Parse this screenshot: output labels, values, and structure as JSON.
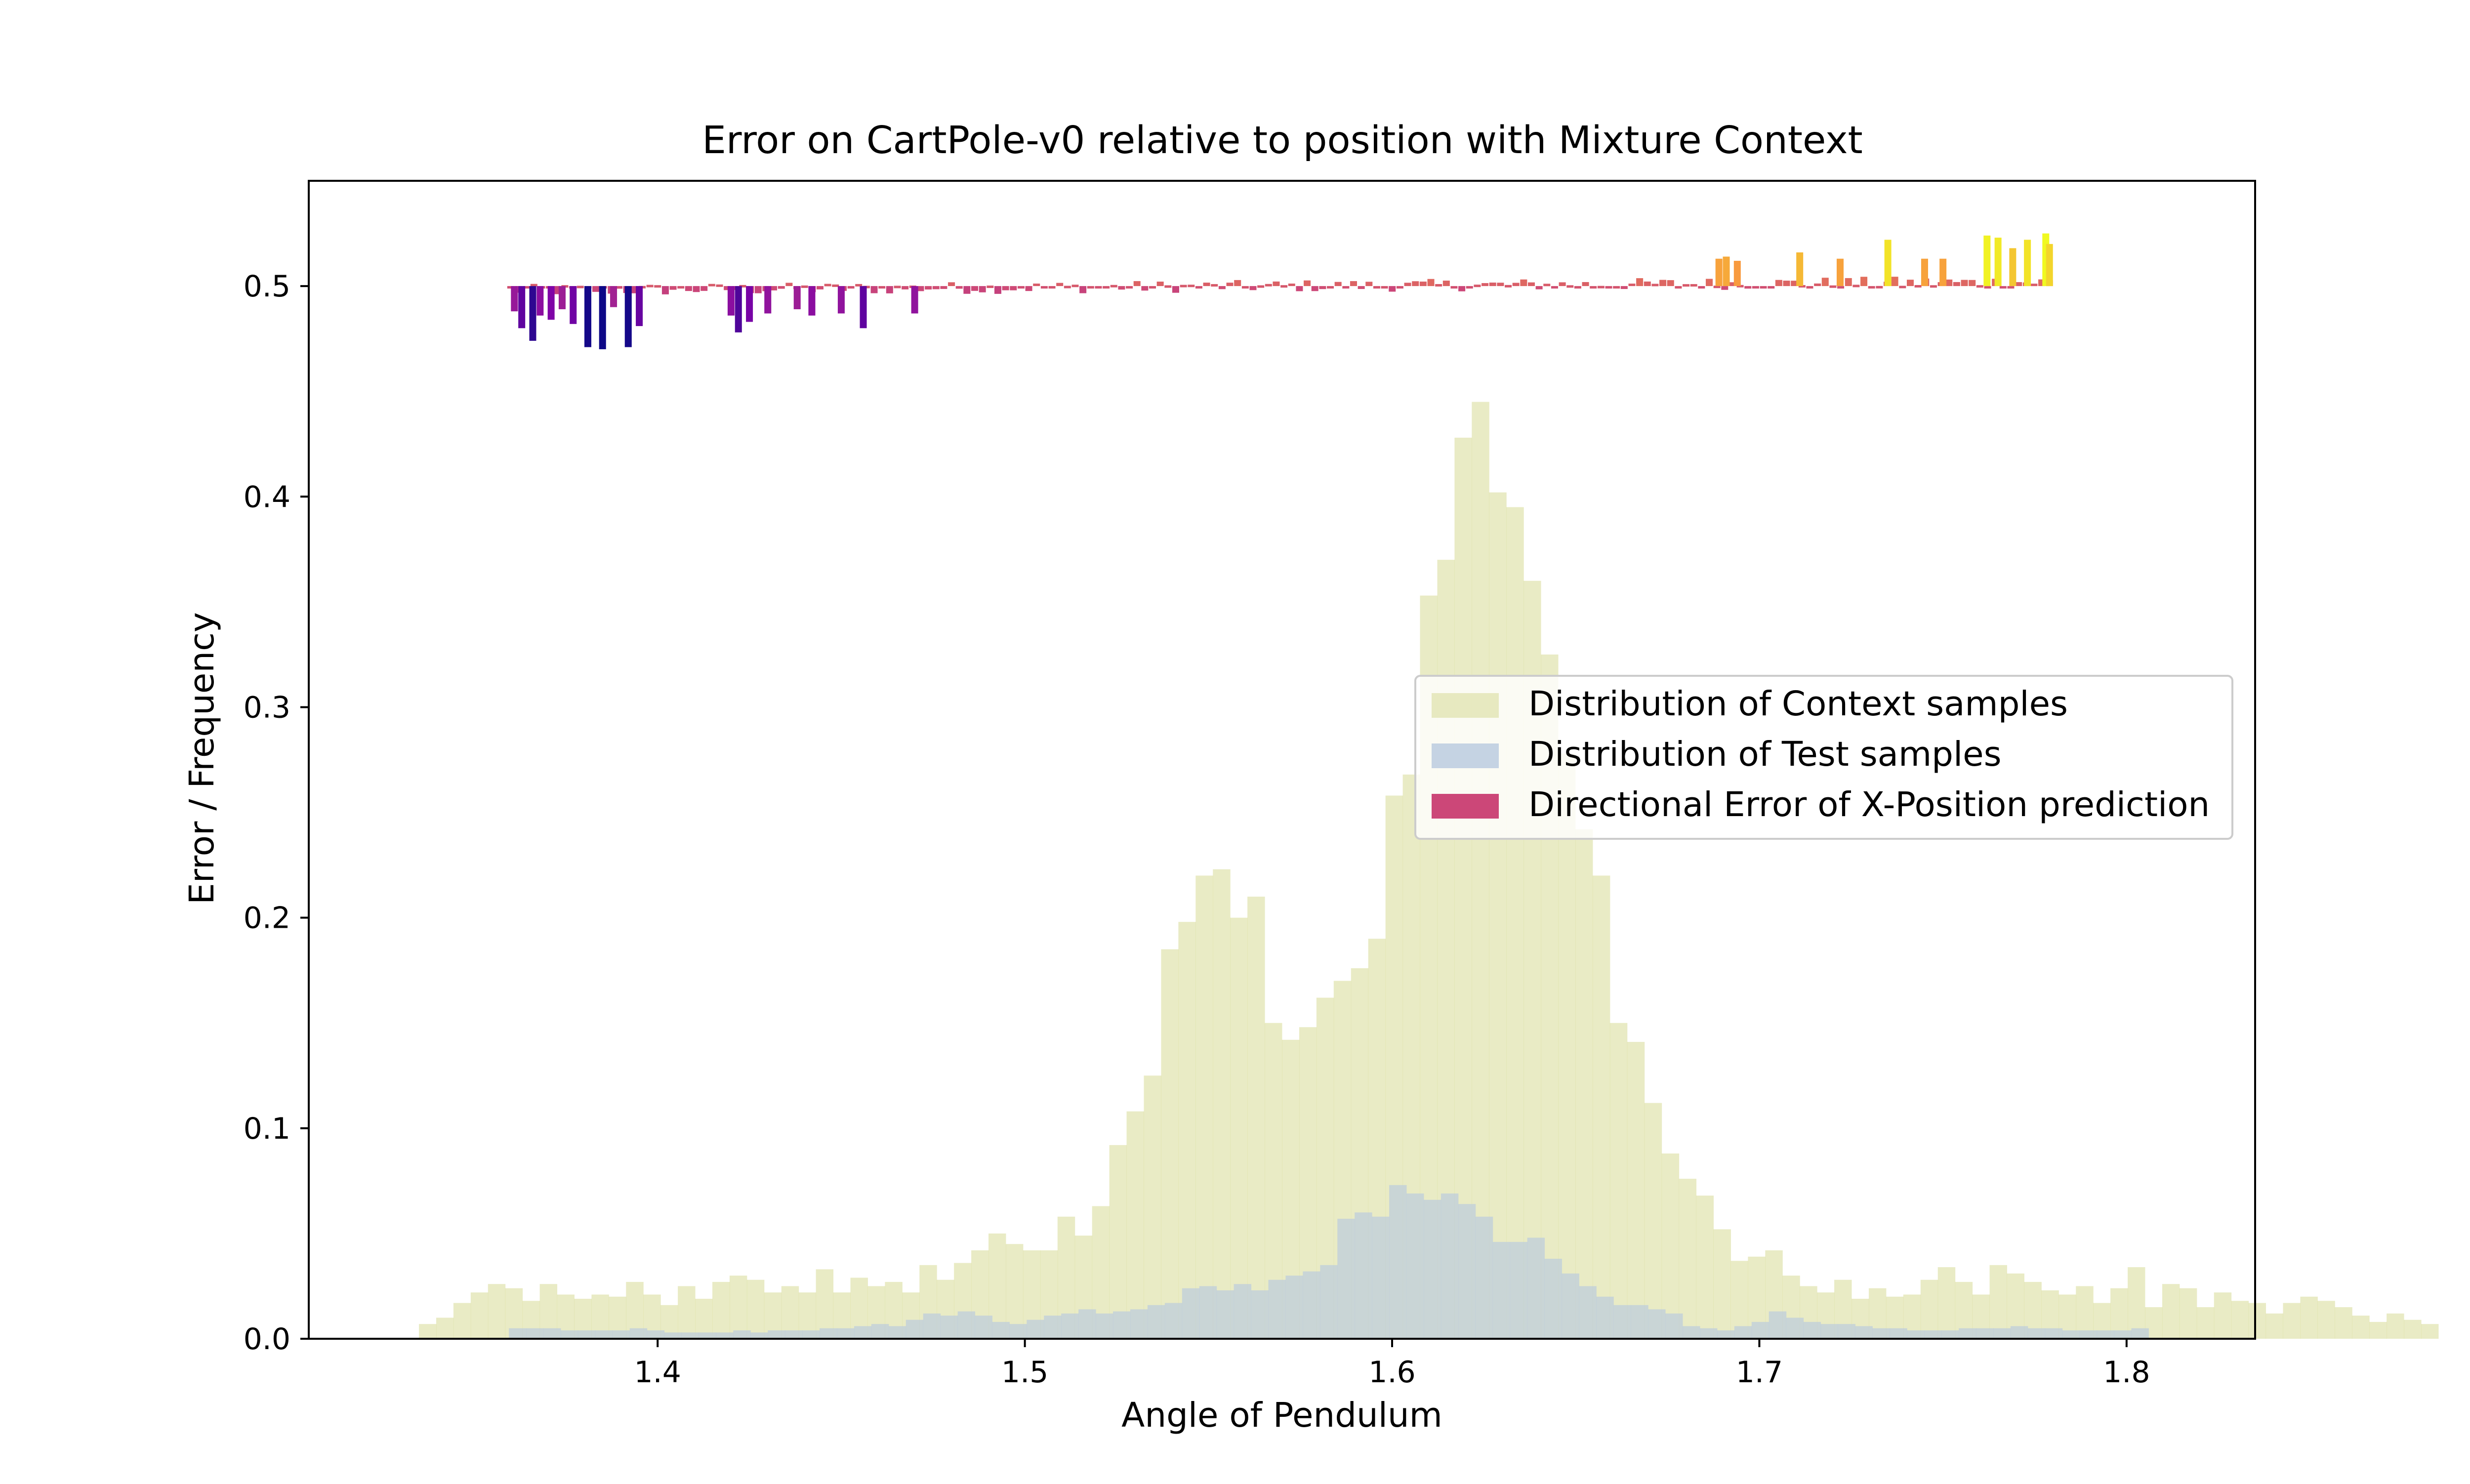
{
  "chart_data": {
    "type": "bar",
    "title": "Error on CartPole-v0 relative to position with Mixture Context",
    "xlabel": "Angle of Pendulum",
    "ylabel": "Error / Frequency",
    "xlim": [
      1.305,
      1.835
    ],
    "ylim": [
      0.0,
      0.55
    ],
    "x_ticks": [
      "1.4",
      "1.5",
      "1.6",
      "1.7",
      "1.8"
    ],
    "y_ticks": [
      "0.0",
      "0.1",
      "0.2",
      "0.3",
      "0.4",
      "0.5"
    ],
    "grid": false,
    "legend_position": "center-right",
    "legend": [
      "Distribution of Context samples",
      "Distribution of Test samples",
      "Directional Error of X-Position prediction"
    ],
    "colors": {
      "context": "#d4d78b",
      "test": "#b8c9de",
      "error_legend": "#cc4778",
      "axis": "#000000"
    },
    "context_histogram": {
      "name": "Distribution of Context samples",
      "bin_start": 1.335,
      "bin_width": 0.0047,
      "values": [
        0.007,
        0.01,
        0.017,
        0.022,
        0.026,
        0.024,
        0.018,
        0.026,
        0.021,
        0.019,
        0.021,
        0.02,
        0.027,
        0.021,
        0.016,
        0.025,
        0.019,
        0.027,
        0.03,
        0.028,
        0.022,
        0.025,
        0.022,
        0.033,
        0.022,
        0.029,
        0.025,
        0.027,
        0.022,
        0.035,
        0.028,
        0.036,
        0.042,
        0.05,
        0.045,
        0.042,
        0.042,
        0.058,
        0.049,
        0.063,
        0.092,
        0.108,
        0.125,
        0.185,
        0.198,
        0.22,
        0.223,
        0.2,
        0.21,
        0.15,
        0.142,
        0.148,
        0.162,
        0.17,
        0.176,
        0.19,
        0.258,
        0.268,
        0.353,
        0.37,
        0.428,
        0.445,
        0.402,
        0.395,
        0.36,
        0.325,
        0.278,
        0.242,
        0.22,
        0.15,
        0.141,
        0.112,
        0.088,
        0.076,
        0.068,
        0.052,
        0.037,
        0.039,
        0.042,
        0.03,
        0.025,
        0.022,
        0.028,
        0.019,
        0.024,
        0.02,
        0.021,
        0.028,
        0.034,
        0.027,
        0.021,
        0.035,
        0.031,
        0.027,
        0.023,
        0.021,
        0.025,
        0.017,
        0.024,
        0.034,
        0.015,
        0.026,
        0.024,
        0.015,
        0.022,
        0.018,
        0.017,
        0.012,
        0.017,
        0.02,
        0.018,
        0.015,
        0.011,
        0.008,
        0.012,
        0.009,
        0.007
      ]
    },
    "test_histogram": {
      "name": "Distribution of Test samples",
      "bin_start": 1.3595,
      "bin_width": 0.0047,
      "values": [
        0.005,
        0.005,
        0.005,
        0.004,
        0.004,
        0.004,
        0.004,
        0.005,
        0.004,
        0.003,
        0.003,
        0.003,
        0.003,
        0.004,
        0.003,
        0.004,
        0.004,
        0.004,
        0.005,
        0.005,
        0.006,
        0.007,
        0.006,
        0.009,
        0.012,
        0.011,
        0.013,
        0.011,
        0.008,
        0.007,
        0.009,
        0.011,
        0.012,
        0.014,
        0.012,
        0.013,
        0.014,
        0.016,
        0.017,
        0.024,
        0.025,
        0.023,
        0.026,
        0.023,
        0.028,
        0.03,
        0.032,
        0.035,
        0.057,
        0.06,
        0.058,
        0.073,
        0.069,
        0.066,
        0.069,
        0.064,
        0.058,
        0.046,
        0.046,
        0.048,
        0.038,
        0.031,
        0.025,
        0.02,
        0.016,
        0.016,
        0.014,
        0.012,
        0.006,
        0.005,
        0.004,
        0.006,
        0.008,
        0.013,
        0.01,
        0.008,
        0.007,
        0.007,
        0.006,
        0.005,
        0.005,
        0.004,
        0.004,
        0.004,
        0.005,
        0.005,
        0.005,
        0.006,
        0.005,
        0.005,
        0.004,
        0.004,
        0.004,
        0.004,
        0.005
      ]
    },
    "error_series": {
      "name": "Directional Error of X-Position prediction",
      "baseline": 0.5,
      "x_start": 1.36,
      "x_end": 1.779,
      "points": 200,
      "highlights": [
        {
          "x": 1.361,
          "y": 0.488
        },
        {
          "x": 1.363,
          "y": 0.48
        },
        {
          "x": 1.366,
          "y": 0.474
        },
        {
          "x": 1.368,
          "y": 0.486
        },
        {
          "x": 1.371,
          "y": 0.484
        },
        {
          "x": 1.374,
          "y": 0.489
        },
        {
          "x": 1.377,
          "y": 0.482
        },
        {
          "x": 1.381,
          "y": 0.471
        },
        {
          "x": 1.385,
          "y": 0.47
        },
        {
          "x": 1.388,
          "y": 0.49
        },
        {
          "x": 1.392,
          "y": 0.471
        },
        {
          "x": 1.395,
          "y": 0.481
        },
        {
          "x": 1.42,
          "y": 0.486
        },
        {
          "x": 1.422,
          "y": 0.478
        },
        {
          "x": 1.425,
          "y": 0.483
        },
        {
          "x": 1.43,
          "y": 0.487
        },
        {
          "x": 1.438,
          "y": 0.489
        },
        {
          "x": 1.442,
          "y": 0.486
        },
        {
          "x": 1.45,
          "y": 0.487
        },
        {
          "x": 1.456,
          "y": 0.48
        },
        {
          "x": 1.47,
          "y": 0.487
        },
        {
          "x": 1.735,
          "y": 0.522
        },
        {
          "x": 1.745,
          "y": 0.513
        },
        {
          "x": 1.75,
          "y": 0.513
        },
        {
          "x": 1.762,
          "y": 0.524
        },
        {
          "x": 1.765,
          "y": 0.523
        },
        {
          "x": 1.769,
          "y": 0.518
        },
        {
          "x": 1.773,
          "y": 0.522
        },
        {
          "x": 1.778,
          "y": 0.525
        },
        {
          "x": 1.779,
          "y": 0.52
        },
        {
          "x": 1.711,
          "y": 0.516
        },
        {
          "x": 1.722,
          "y": 0.513
        },
        {
          "x": 1.689,
          "y": 0.513
        },
        {
          "x": 1.691,
          "y": 0.514
        },
        {
          "x": 1.694,
          "y": 0.512
        }
      ]
    }
  }
}
